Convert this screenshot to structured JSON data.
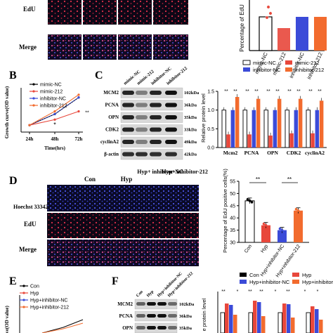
{
  "panels": {
    "A": {
      "row_labels": [
        "EdU",
        "Merge"
      ],
      "chart_data": {
        "type": "bar",
        "ylabel": "Percentage of EdU",
        "categories": [
          "mimic-NC",
          "mimic-212",
          "inhibitor-NC",
          "inhibitor-212"
        ],
        "values": [
          42,
          38,
          42,
          42
        ],
        "colors": [
          "#000000",
          "#e8473b",
          "#3b4bd8",
          "#f26b2e"
        ]
      }
    },
    "B": {
      "letter": "B",
      "chart_data": {
        "type": "line",
        "ylabel": "Growth curve(OD value)",
        "xlabel": "Time(hrs)",
        "x": [
          "24h",
          "48h",
          "72h"
        ],
        "series": [
          {
            "name": "mimic-NC",
            "values": [
              0.55,
              0.95,
              1.55
            ],
            "color": "#000000"
          },
          {
            "name": "mimic-212",
            "values": [
              0.55,
              0.75,
              1.05
            ],
            "color": "#e8473b"
          },
          {
            "name": "inhibitor-NC",
            "values": [
              0.55,
              0.95,
              1.55
            ],
            "color": "#3b4bd8"
          },
          {
            "name": "inhibitor-212",
            "values": [
              0.55,
              1.05,
              1.65
            ],
            "color": "#f26b2e"
          }
        ],
        "annotations": [
          "*",
          "**"
        ]
      }
    },
    "C": {
      "letter": "C",
      "lanes": [
        "mimic-NC",
        "mimic-212",
        "inhibitor-NC",
        "inhibitor-212"
      ],
      "proteins": [
        {
          "name": "MCM2",
          "kda": "102kDa"
        },
        {
          "name": "PCNA",
          "kda": "36kDa"
        },
        {
          "name": "OPN",
          "kda": "35kDa"
        },
        {
          "name": "CDK2",
          "kda": "33kDa"
        },
        {
          "name": "cyclinA2",
          "kda": "49kDa"
        },
        {
          "name": "β-actin",
          "kda": "42kDa"
        }
      ],
      "chart_data": {
        "type": "bar",
        "ylabel": "Relative protein level",
        "categories": [
          "Mcm2",
          "PCNA",
          "OPN",
          "CDK2",
          "cyclinA2"
        ],
        "legend": [
          "mimic-NC",
          "mimic-212",
          "inhibitor-NC",
          "inhibitor-212"
        ],
        "ylim": [
          0,
          1.5
        ],
        "yticks": [
          "0.0",
          "0.5",
          "1.0",
          "1.5"
        ],
        "series": [
          {
            "name": "mimic-NC",
            "values": [
              1.0,
              1.0,
              1.0,
              1.0,
              1.0
            ],
            "color": "#000000"
          },
          {
            "name": "mimic-212",
            "values": [
              0.35,
              0.35,
              0.32,
              0.38,
              0.38
            ],
            "color": "#e8473b"
          },
          {
            "name": "inhibitor-NC",
            "values": [
              1.0,
              1.0,
              1.0,
              1.0,
              1.0
            ],
            "color": "#3b4bd8"
          },
          {
            "name": "inhibitor-212",
            "values": [
              1.35,
              1.3,
              1.3,
              1.3,
              1.25
            ],
            "color": "#f26b2e"
          }
        ],
        "significance": [
          "**",
          "**",
          "**",
          "**",
          "**",
          "**",
          "**",
          "**",
          "**",
          "**"
        ]
      }
    },
    "D": {
      "letter": "D",
      "columns": [
        "Con",
        "Hyp",
        "Hyp+ inhibitor-NC",
        "Hyp+ inhibitor-212"
      ],
      "row_labels": [
        "Hoechst 33342",
        "EdU",
        "Merge"
      ],
      "chart_data": {
        "type": "bar",
        "ylabel": "Percentage of EdU positive cells(%)",
        "categories": [
          "Con",
          "Hyp",
          "Hyp+inhibitor-NC",
          "Hyp+inhibitor-212"
        ],
        "values": [
          47,
          37,
          35,
          43
        ],
        "colors": [
          "#000000",
          "#e8473b",
          "#3b4bd8",
          "#f26b2e"
        ],
        "ylim": [
          30,
          55
        ],
        "yticks": [
          "30",
          "35",
          "40",
          "45",
          "50",
          "55"
        ],
        "significance": [
          "**",
          "**"
        ]
      }
    },
    "E": {
      "letter": "E",
      "chart_data": {
        "type": "line",
        "ylabel": "curve(OD value)",
        "series": [
          {
            "name": "Con",
            "color": "#000000"
          },
          {
            "name": "Hyp",
            "color": "#e8473b"
          },
          {
            "name": "Hyp+inhibitor-NC",
            "color": "#3b4bd8"
          },
          {
            "name": "Hyp+inhibitor-212",
            "color": "#f26b2e"
          }
        ]
      }
    },
    "F": {
      "letter": "F",
      "lanes": [
        "Con",
        "Hyp",
        "Hyp+inhibitor-NC",
        "Hyp+inhibitor-212"
      ],
      "proteins": [
        {
          "name": "MCM2",
          "kda": "102kDa"
        },
        {
          "name": "PCNA",
          "kda": "36kDa"
        },
        {
          "name": "OPN",
          "kda": "35kDa"
        }
      ],
      "chart_data": {
        "type": "bar",
        "ylabel": "e protein level",
        "legend": [
          "Con",
          "Hyp",
          "Hyp+inhibitor-NC",
          "Hyp+inhibitor-212"
        ],
        "series": [
          {
            "name": "Con",
            "color": "#000000"
          },
          {
            "name": "Hyp",
            "color": "#e8473b"
          },
          {
            "name": "Hyp+inhibitor-NC",
            "color": "#3b4bd8"
          },
          {
            "name": "Hyp+inhibitor-212",
            "color": "#f26b2e"
          }
        ],
        "significance": [
          "**",
          "*",
          "**",
          "**",
          "*",
          "**",
          "*",
          "*"
        ]
      }
    }
  }
}
